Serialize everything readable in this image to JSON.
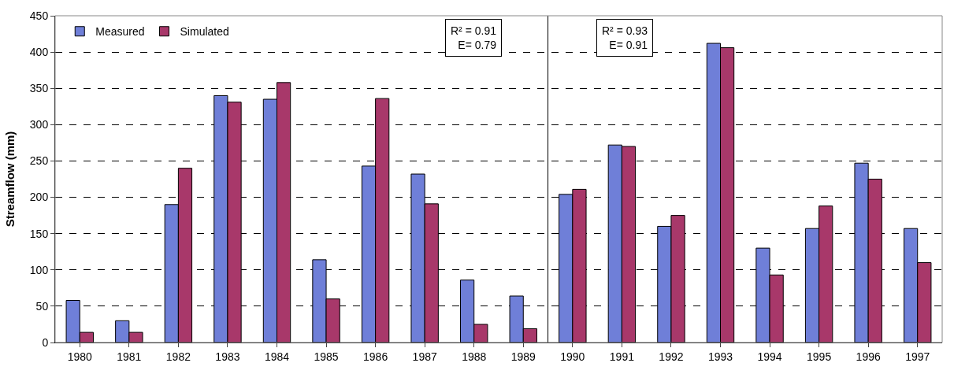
{
  "chart_data": {
    "type": "bar",
    "ylabel": "Streamflow (mm)",
    "x": [
      1980,
      1981,
      1982,
      1983,
      1984,
      1985,
      1986,
      1987,
      1988,
      1989,
      1990,
      1991,
      1992,
      1993,
      1994,
      1995,
      1996,
      1997
    ],
    "series": [
      {
        "name": "Measured",
        "color": "#6f7fd8",
        "values": [
          58,
          30,
          190,
          340,
          335,
          114,
          243,
          232,
          86,
          64,
          204,
          272,
          160,
          412,
          130,
          157,
          247,
          157
        ]
      },
      {
        "name": "Simulated",
        "color": "#a8386a",
        "values": [
          14,
          14,
          240,
          331,
          358,
          60,
          336,
          191,
          25,
          19,
          211,
          270,
          175,
          406,
          93,
          188,
          225,
          110
        ]
      }
    ],
    "xlim": [
      1979.5,
      1997.5
    ],
    "xticks": [
      1980,
      1981,
      1982,
      1983,
      1984,
      1985,
      1986,
      1987,
      1988,
      1989,
      1990,
      1991,
      1992,
      1993,
      1994,
      1995,
      1996,
      1997
    ],
    "ylim": [
      0,
      450
    ],
    "yticks": [
      0,
      50,
      100,
      150,
      200,
      250,
      300,
      350,
      400,
      450
    ],
    "ref_lines": [
      {
        "axis": "x",
        "value": 1989.5,
        "color": "#000000"
      }
    ],
    "annotations": [
      "R² = 0.91\nE= 0.79",
      "R² = 0.93\nE= 0.91"
    ],
    "grid": "y",
    "legend": "top left"
  }
}
